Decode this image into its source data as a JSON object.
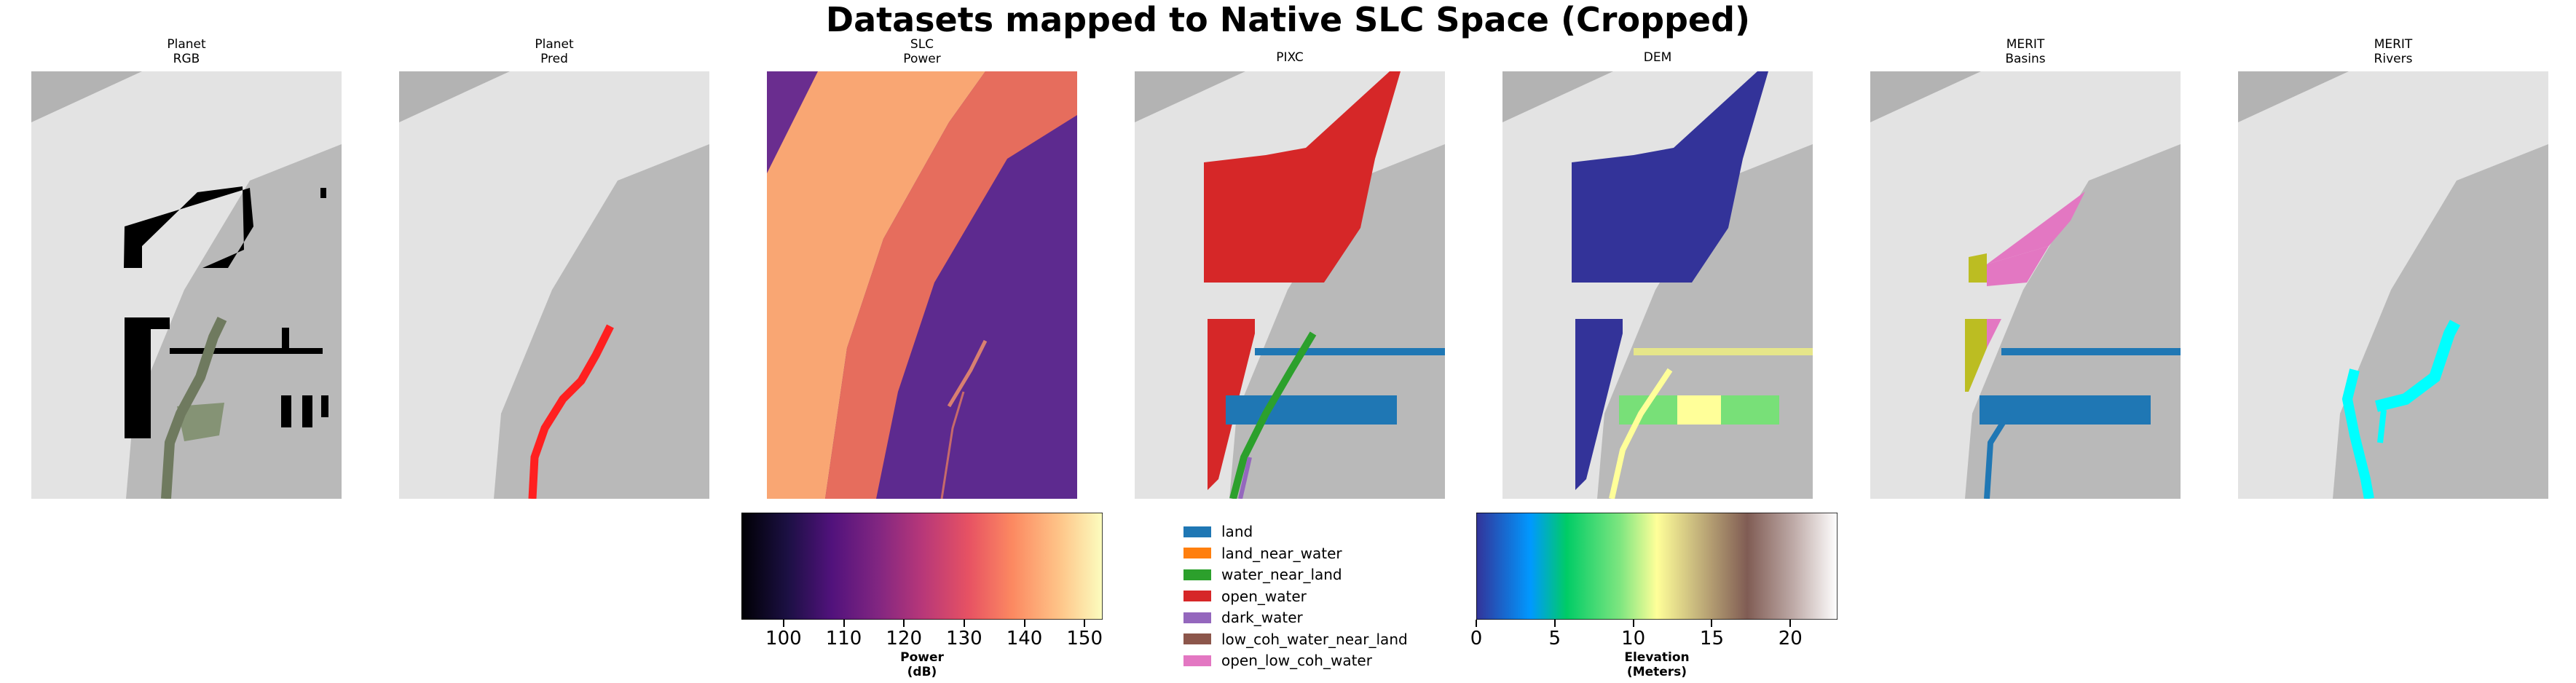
{
  "suptitle": "Datasets mapped to Native SLC Space (Cropped)",
  "panels": [
    {
      "title_line1": "Planet",
      "title_line2": "RGB"
    },
    {
      "title_line1": "Planet",
      "title_line2": "Pred"
    },
    {
      "title_line1": "SLC",
      "title_line2": "Power"
    },
    {
      "title_line1": "PIXC",
      "title_line2": ""
    },
    {
      "title_line1": "DEM",
      "title_line2": ""
    },
    {
      "title_line1": "MERIT",
      "title_line2": "Basins"
    },
    {
      "title_line1": "MERIT",
      "title_line2": "Rivers"
    }
  ],
  "colors": {
    "water_mask_black": "#000000",
    "pred_river": "#ff2020",
    "pixc_land": "#1f77b4",
    "pixc_land_near_water": "#ff7f0e",
    "pixc_water_near_land": "#2ca02c",
    "pixc_open_water": "#d62728",
    "pixc_dark_water": "#9467bd",
    "pixc_low_coh_water_near_land": "#8c564b",
    "pixc_open_low_coh_water": "#e377c2",
    "merit_basin_a": "#e377c2",
    "merit_basin_b": "#bcbd22",
    "merit_basin_c": "#1f77b4",
    "merit_rivers": "#00ffff",
    "dem_low": "#333399"
  },
  "chart_data": [
    {
      "type": "heatmap",
      "name": "power-colorbar",
      "colormap": "magma",
      "label_line1": "Power",
      "label_line2": "(dB)",
      "range": [
        93,
        153
      ],
      "ticks": [
        100,
        110,
        120,
        130,
        140,
        150
      ]
    },
    {
      "type": "legend",
      "name": "pixc-classes",
      "entries": [
        {
          "label": "land",
          "color": "#1f77b4"
        },
        {
          "label": "land_near_water",
          "color": "#ff7f0e"
        },
        {
          "label": "water_near_land",
          "color": "#2ca02c"
        },
        {
          "label": "open_water",
          "color": "#d62728"
        },
        {
          "label": "dark_water",
          "color": "#9467bd"
        },
        {
          "label": "low_coh_water_near_land",
          "color": "#8c564b"
        },
        {
          "label": "open_low_coh_water",
          "color": "#e377c2"
        }
      ]
    },
    {
      "type": "heatmap",
      "name": "elevation-colorbar",
      "colormap": "terrain",
      "label_line1": "Elevation",
      "label_line2": "(Meters)",
      "range": [
        0,
        23
      ],
      "ticks": [
        0,
        5,
        10,
        15,
        20
      ]
    }
  ]
}
